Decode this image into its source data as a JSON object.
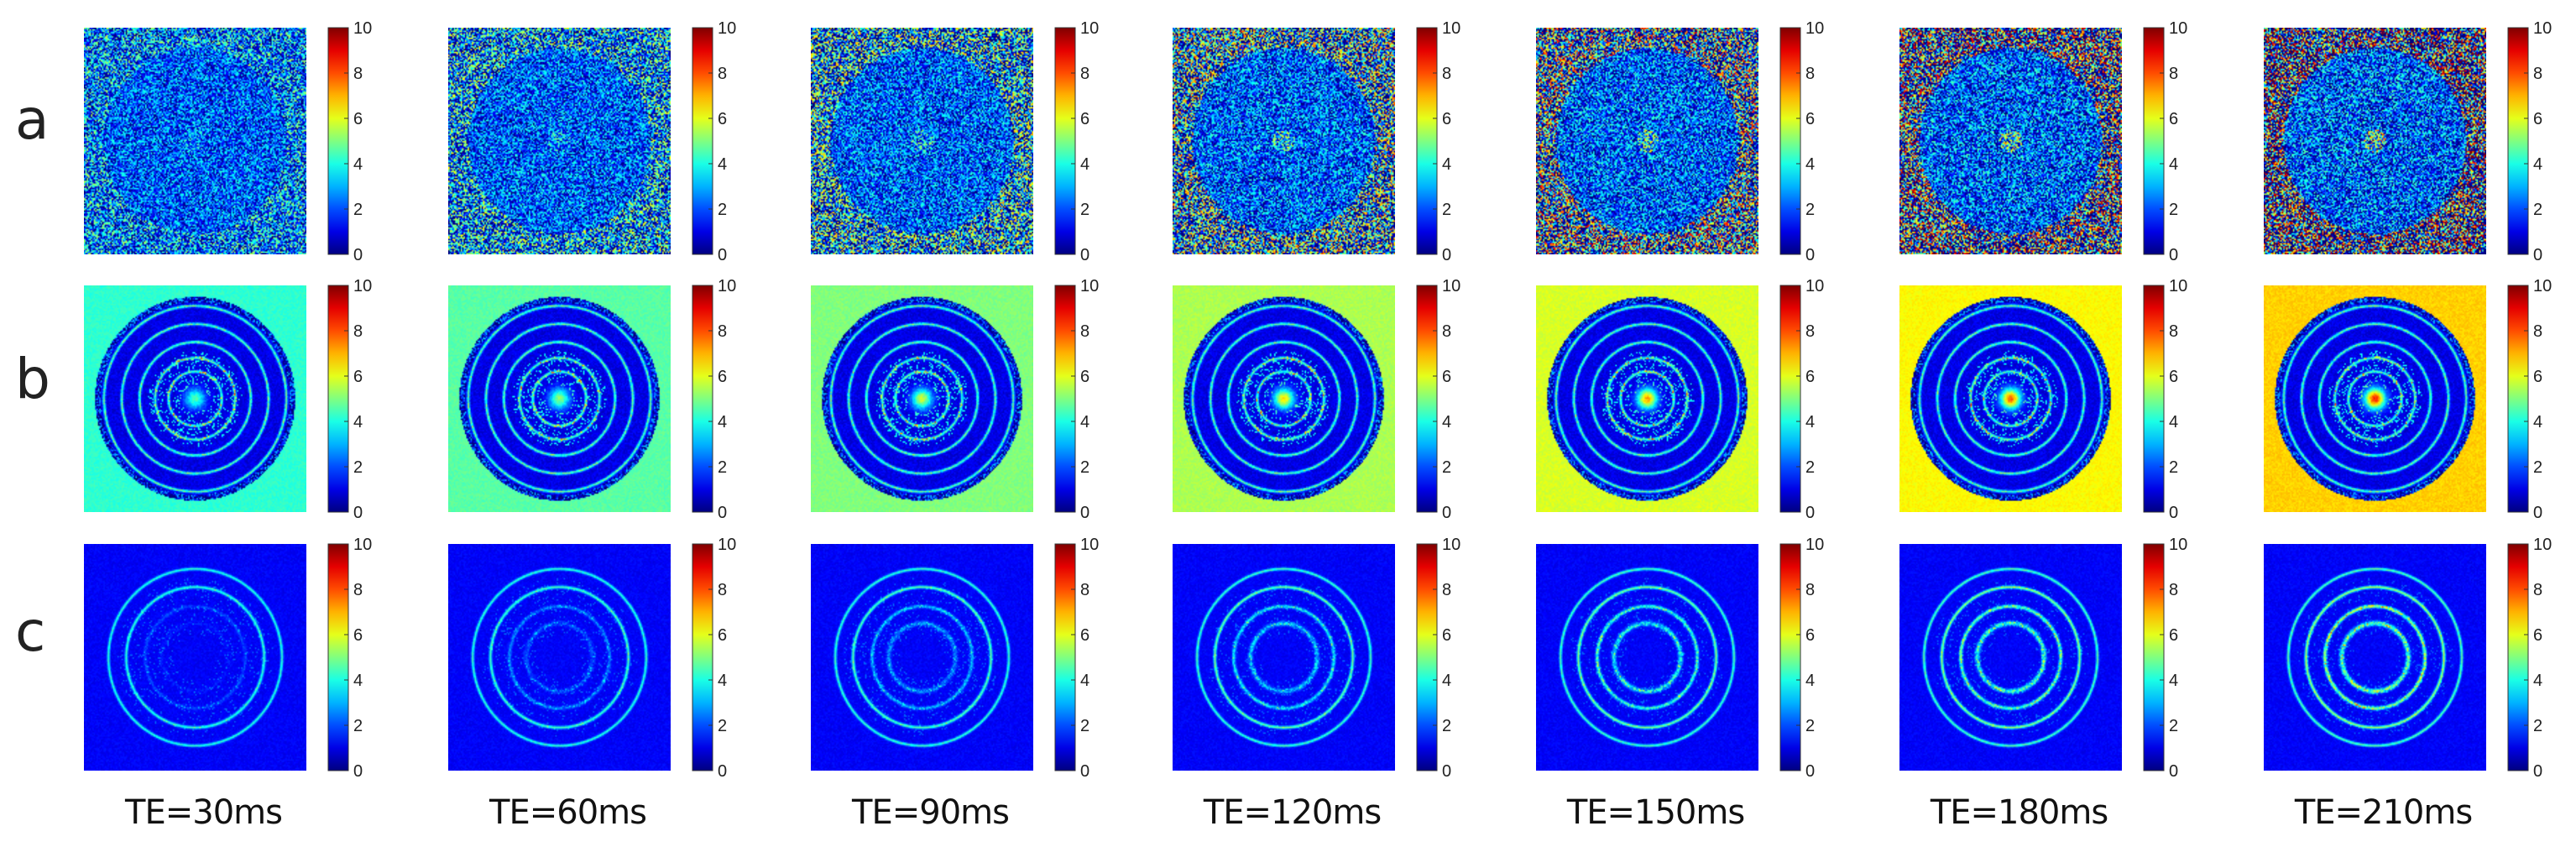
{
  "rows": [
    {
      "label": "a",
      "kind": "noise"
    },
    {
      "label": "b",
      "kind": "rings-dense"
    },
    {
      "label": "c",
      "kind": "rings-sparse"
    }
  ],
  "columns": [
    {
      "label": "TE=30ms",
      "level": 0.0
    },
    {
      "label": "TE=60ms",
      "level": 0.17
    },
    {
      "label": "TE=90ms",
      "level": 0.33
    },
    {
      "label": "TE=120ms",
      "level": 0.5
    },
    {
      "label": "TE=150ms",
      "level": 0.67
    },
    {
      "label": "TE=180ms",
      "level": 0.83
    },
    {
      "label": "TE=210ms",
      "level": 1.0
    }
  ],
  "colorbar": {
    "min": 0,
    "max": 10,
    "ticks": [
      "0",
      "2",
      "4",
      "6",
      "8",
      "10"
    ],
    "colormap": "jet"
  }
}
